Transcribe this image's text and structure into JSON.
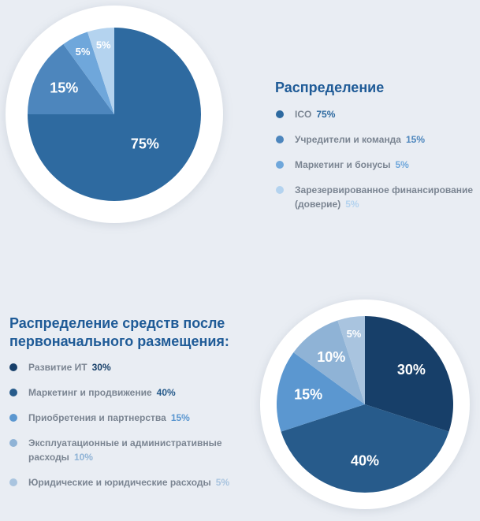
{
  "chart_data": [
    {
      "type": "pie",
      "title": "Распределение",
      "categories": [
        "ICO",
        "Учредители и команда",
        "Маркетинг и бонусы",
        "Зарезервированное финансирование (доверие)"
      ],
      "values": [
        75,
        15,
        5,
        5
      ],
      "value_labels": [
        "75%",
        "15%",
        "5%",
        "5%"
      ],
      "colors": [
        "#2e6aa0",
        "#4d86bd",
        "#6fa7db",
        "#b4d3ef"
      ]
    },
    {
      "type": "pie",
      "title": "Распределение средств после первоначального размещения:",
      "categories": [
        "Развитие ИТ",
        "Маркетинг и продвижение",
        "Приобретения и партнерства",
        "Эксплуатационные и административные расходы",
        "Юридические и юридические расходы"
      ],
      "values": [
        30,
        40,
        15,
        10,
        5
      ],
      "value_labels": [
        "30%",
        "40%",
        "15%",
        "10%",
        "5%"
      ],
      "colors": [
        "#173f69",
        "#275b8b",
        "#5b97d0",
        "#8fb3d6",
        "#a9c4df"
      ]
    }
  ]
}
